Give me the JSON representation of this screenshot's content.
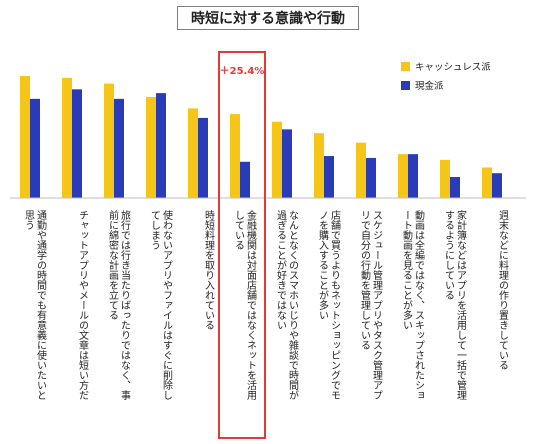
{
  "chart_data": {
    "type": "bar",
    "title": "時短に対する意識や行動",
    "legend_position": "top-right",
    "grid": false,
    "ylim": [
      0,
      75
    ],
    "series": [
      {
        "name": "キャッシュレス派",
        "color": "#F5C518",
        "values": [
          64,
          63,
          60,
          53,
          47,
          44,
          40,
          34,
          29,
          23,
          20,
          16
        ]
      },
      {
        "name": "現金派",
        "color": "#2A3BB8",
        "values": [
          52,
          57,
          52,
          55,
          42,
          19,
          36,
          22,
          21,
          23,
          11,
          13
        ]
      }
    ],
    "categories": [
      "通勤や通学の時間でも有意義に使いたいと思う",
      "チャットアプリやメールの文章は短い方だ",
      "旅行では行き当たりばったりではなく、事前に綿密な計画を立てる",
      "使わないアプリやファイルはすぐに削除してしまう",
      "時短料理を取り入れている",
      "金融機関は対面店舗ではなくネットを活用している",
      "なんとなくのスマホいじりや雑談で時間が過ぎることが好きではない",
      "店舗で買うよりもネットショッピングでモノを購入することが多い",
      "スケジュール管理アプリやタスク管理アプリで自分の行動を管理している",
      "動画は全編ではなく、スキップされたショート動画を見ることが多い",
      "家計簿などはアプリを活用して一括で管理するようにしている",
      "週末などに料理の作り置きしている"
    ],
    "annotation": {
      "text": "＋25.4%",
      "category_index": 5,
      "color": "#E53935"
    }
  }
}
